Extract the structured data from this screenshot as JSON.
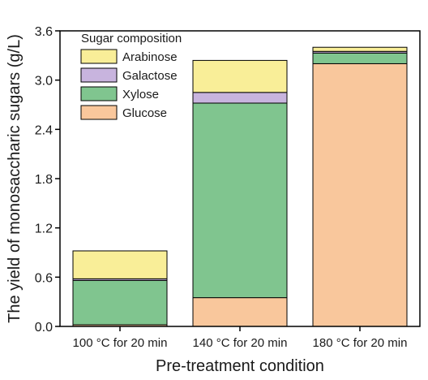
{
  "chart_data": {
    "type": "bar",
    "stacked": true,
    "xlabel": "Pre-treatment condition",
    "ylabel": "The yield of monosaccharic sugars (g/L)",
    "ylim": [
      0,
      3.6
    ],
    "yticks": [
      "0.0",
      "0.6",
      "1.2",
      "1.8",
      "2.4",
      "3.0",
      "3.6"
    ],
    "categories": [
      "100 °C for 20 min",
      "140 °C for 20 min",
      "180 °C for 20 min"
    ],
    "legend": {
      "title": "Sugar composition",
      "placement": "top-left"
    },
    "series": [
      {
        "name": "Glucose",
        "color": "#F9C79C",
        "values": [
          0.02,
          0.35,
          3.2
        ]
      },
      {
        "name": "Xylose",
        "color": "#80C58F",
        "values": [
          0.54,
          2.37,
          0.13
        ]
      },
      {
        "name": "Galactose",
        "color": "#C8B4DE",
        "values": [
          0.02,
          0.13,
          0.02
        ]
      },
      {
        "name": "Arabinose",
        "color": "#F9EE98",
        "values": [
          0.34,
          0.39,
          0.05
        ]
      }
    ],
    "legend_order": [
      "Arabinose",
      "Galactose",
      "Xylose",
      "Glucose"
    ],
    "grid": false
  }
}
